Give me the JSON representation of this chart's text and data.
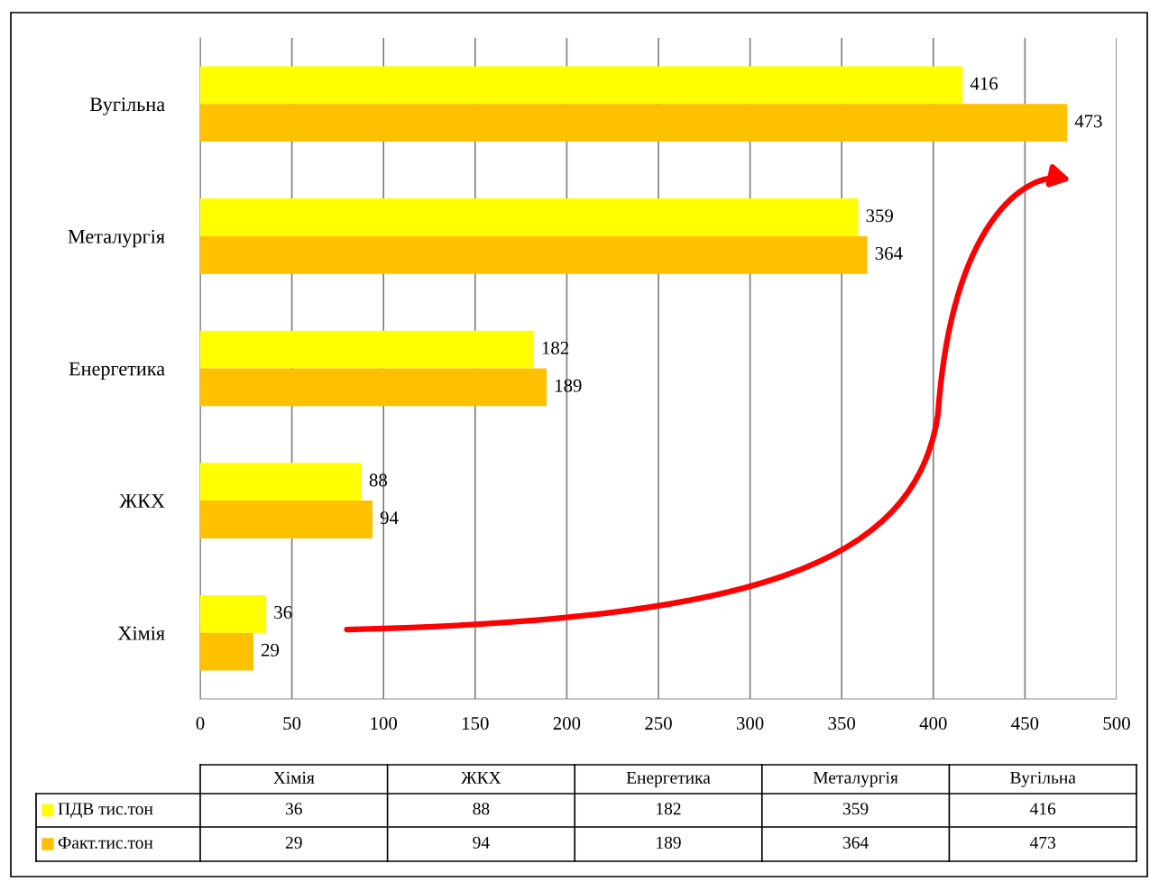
{
  "chart_data": [
    {
      "type": "bar",
      "orientation": "horizontal",
      "categories": [
        "Вугільна",
        "Металургія",
        "Енергетика",
        "ЖКХ",
        "Хімія"
      ],
      "series": [
        {
          "color": "#ffff00",
          "values": [
            416,
            359,
            182,
            88,
            36
          ]
        },
        {
          "color": "#ffc000",
          "values": [
            473,
            364,
            189,
            94,
            29
          ]
        }
      ],
      "xlim": [
        0,
        500
      ],
      "xticks": [
        0,
        50,
        100,
        150,
        200,
        250,
        300,
        350,
        400,
        450,
        500
      ],
      "grid": "x",
      "data_labels": true
    },
    {
      "type": "other",
      "categories": [
        "Хімія",
        "ЖКХ",
        "Енергетика",
        "Металургія",
        "Вугільна"
      ],
      "series": [
        {
          "name": "ПДВ тис.тон",
          "color": "#ffff00",
          "values": [
            36,
            88,
            182,
            359,
            416
          ]
        },
        {
          "name": "Факт.тис.тон",
          "color": "#ffc000",
          "values": [
            29,
            94,
            189,
            364,
            473
          ]
        }
      ],
      "data_labels": true,
      "legend": "bottom"
    }
  ]
}
